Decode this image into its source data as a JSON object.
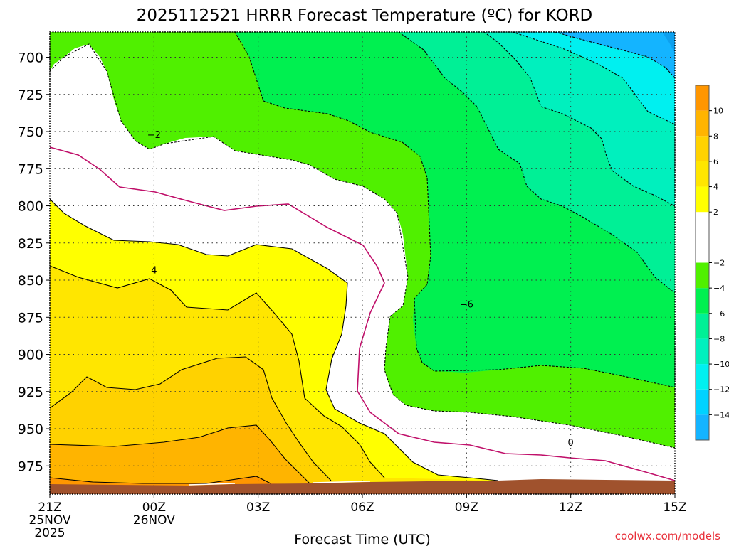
{
  "chart_data": {
    "type": "heatmap",
    "title": "2025112521 HRRR Forecast Temperature (ºC) for KORD",
    "xlabel": "Forecast Time (UTC)",
    "ylabel": "",
    "credit": "coolwx.com/models",
    "x_ticks": [
      {
        "hour": 0,
        "label": "21Z",
        "sub1": "25NOV",
        "sub2": "2025"
      },
      {
        "hour": 3,
        "label": "00Z",
        "sub1": "26NOV",
        "sub2": ""
      },
      {
        "hour": 6,
        "label": "03Z",
        "sub1": "",
        "sub2": ""
      },
      {
        "hour": 9,
        "label": "06Z",
        "sub1": "",
        "sub2": ""
      },
      {
        "hour": 12,
        "label": "09Z",
        "sub1": "",
        "sub2": ""
      },
      {
        "hour": 15,
        "label": "12Z",
        "sub1": "",
        "sub2": ""
      },
      {
        "hour": 18,
        "label": "15Z",
        "sub1": "",
        "sub2": ""
      }
    ],
    "y_ticks": [
      700,
      725,
      750,
      775,
      800,
      825,
      850,
      875,
      900,
      925,
      950,
      975
    ],
    "y_range_hPa": [
      683,
      994
    ],
    "x_range_hours": [
      0,
      18
    ],
    "colorbar": {
      "bins": [
        {
          "from": -16,
          "to": -14,
          "color": "#14b4ff"
        },
        {
          "from": -14,
          "to": -12,
          "color": "#00d2ff"
        },
        {
          "from": -12,
          "to": -10,
          "color": "#00f0f0"
        },
        {
          "from": -10,
          "to": -8,
          "color": "#00f0be"
        },
        {
          "from": -8,
          "to": -6,
          "color": "#00f096"
        },
        {
          "from": -6,
          "to": -4,
          "color": "#00f050"
        },
        {
          "from": -4,
          "to": -2,
          "color": "#50f000"
        },
        {
          "from": -2,
          "to": 2,
          "color": "#ffffff"
        },
        {
          "from": 2,
          "to": 4,
          "color": "#ffff00"
        },
        {
          "from": 4,
          "to": 6,
          "color": "#ffe600"
        },
        {
          "from": 6,
          "to": 8,
          "color": "#ffd200"
        },
        {
          "from": 8,
          "to": 10,
          "color": "#ffb400"
        },
        {
          "from": 10,
          "to": 12,
          "color": "#ff9600"
        }
      ],
      "tick_labels": [
        "10",
        "8",
        "6",
        "4",
        "2",
        "−2",
        "−4",
        "−6",
        "−8",
        "−10",
        "−12",
        "−14"
      ]
    },
    "contour_labels": [
      {
        "text": "−2",
        "hour": 3.0,
        "hPa": 752
      },
      {
        "text": "4",
        "hour": 3.0,
        "hPa": 843
      },
      {
        "text": "−6",
        "hour": 12.0,
        "hPa": 866
      },
      {
        "text": "0",
        "hour": 15.0,
        "hPa": 959
      }
    ],
    "terrain_color": "#a0522d",
    "zero_line_color": "#c0106a"
  }
}
